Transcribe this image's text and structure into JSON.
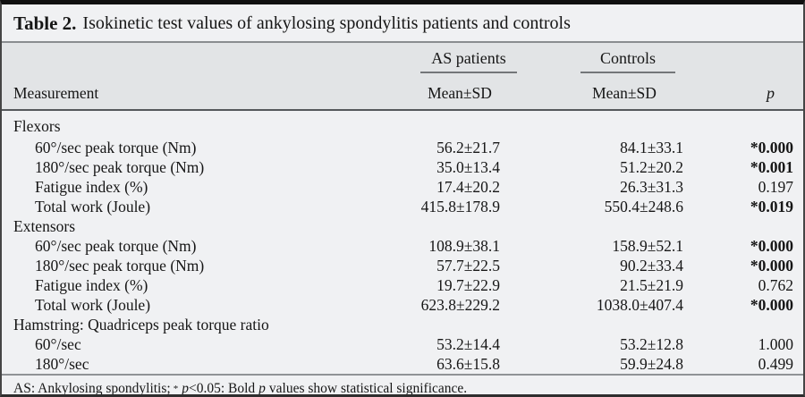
{
  "colors": {
    "page_bg": "#f0f1f3",
    "header_band": "#e2e4e6",
    "top_border": "#101010",
    "text": "#161616"
  },
  "caption": {
    "label": "Table 2.",
    "text": "Isokinetic test values of ankylosing spondylitis patients and controls"
  },
  "table": {
    "col_measurement": "Measurement",
    "group_as": "AS patients",
    "group_controls": "Controls",
    "mean_sd_as": "Mean±SD",
    "mean_sd_controls": "Mean±SD",
    "col_p": "p",
    "rows": [
      {
        "type": "group",
        "label": "Flexors"
      },
      {
        "label": "60°/sec peak torque (Nm)",
        "as": "56.2±21.7",
        "controls": "84.1±33.1",
        "p": "*0.000",
        "sig": true
      },
      {
        "label": "180°/sec peak torque (Nm)",
        "as": "35.0±13.4",
        "controls": "51.2±20.2",
        "p": "*0.001",
        "sig": true
      },
      {
        "label": "Fatigue index (%)",
        "as": "17.4±20.2",
        "controls": "26.3±31.3",
        "p": "0.197",
        "sig": false
      },
      {
        "label": "Total work (Joule)",
        "as": "415.8±178.9",
        "controls": "550.4±248.6",
        "p": "*0.019",
        "sig": true
      },
      {
        "type": "group",
        "label": "Extensors"
      },
      {
        "label": "60°/sec peak torque (Nm)",
        "as": "108.9±38.1",
        "controls": "158.9±52.1",
        "p": "*0.000",
        "sig": true
      },
      {
        "label": "180°/sec peak torque (Nm)",
        "as": "57.7±22.5",
        "controls": "90.2±33.4",
        "p": "*0.000",
        "sig": true
      },
      {
        "label": "Fatigue index (%)",
        "as": "19.7±22.9",
        "controls": "21.5±21.9",
        "p": "0.762",
        "sig": false
      },
      {
        "label": "Total work (Joule)",
        "as": "623.8±229.2",
        "controls": "1038.0±407.4",
        "p": "*0.000",
        "sig": true
      },
      {
        "type": "group",
        "label": "Hamstring: Quadriceps peak torque ratio"
      },
      {
        "label": "60°/sec",
        "as": "53.2±14.4",
        "controls": "53.2±12.8",
        "p": "1.000",
        "sig": false
      },
      {
        "label": "180°/sec",
        "as": "63.6±15.8",
        "controls": "59.9±24.8",
        "p": "0.499",
        "sig": false
      }
    ]
  },
  "footnote": {
    "part1": "AS: Ankylosing spondylitis;",
    "asterisk": "*",
    "p1": "p",
    "part2": "<0.05: Bold",
    "p2": "p",
    "part3": "values show statistical significance."
  }
}
